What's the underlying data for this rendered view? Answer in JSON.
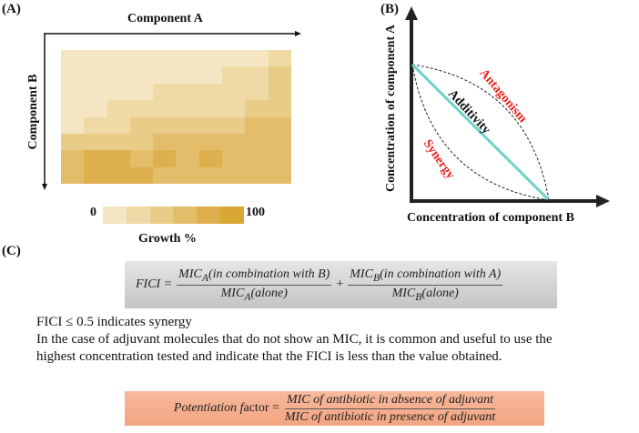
{
  "panel_a": {
    "label": "(A)",
    "x_axis_label": "Component A",
    "y_axis_label": "Component B",
    "colorbar_min": "0",
    "colorbar_max": "100",
    "colorbar_title": "Growth %",
    "colorbar_colors": [
      "#f4e6c2",
      "#efdaa5",
      "#e9cc88",
      "#e3bd69",
      "#ddb04d",
      "#d9a733"
    ],
    "heatmap_levels": [
      [
        0,
        0,
        0,
        0,
        0,
        0,
        0,
        0,
        0,
        1
      ],
      [
        0,
        0,
        0,
        0,
        0,
        0,
        0,
        1,
        1,
        2
      ],
      [
        0,
        0,
        0,
        0,
        1,
        1,
        1,
        1,
        1,
        2
      ],
      [
        0,
        0,
        1,
        1,
        1,
        1,
        1,
        1,
        2,
        2
      ],
      [
        0,
        1,
        1,
        2,
        2,
        2,
        2,
        2,
        3,
        3
      ],
      [
        2,
        2,
        2,
        2,
        3,
        3,
        3,
        3,
        3,
        3
      ],
      [
        3,
        4,
        4,
        3,
        4,
        3,
        4,
        3,
        3,
        3
      ],
      [
        3,
        4,
        4,
        4,
        3,
        3,
        3,
        3,
        3,
        3
      ]
    ]
  },
  "panel_b": {
    "label": "(B)",
    "y_axis_label": "Concentration of component A",
    "x_axis_label": "Concentration of component B",
    "antagonism": "Antagonism",
    "additivity": "Additivity",
    "synergy": "Synergy",
    "region_color": "#e8221d",
    "additivity_line_color": "#6fd3c9"
  },
  "panel_c": {
    "label": "(C)",
    "fici_lhs": "FICI =",
    "term1_num": "MIC",
    "term1_num_sub": "A",
    "term1_num_rest": "(in combination with B)",
    "term1_den": "MIC",
    "term1_den_sub": "A",
    "term1_den_rest": "(alone)",
    "plus": "+",
    "term2_num": "MIC",
    "term2_num_sub": "B",
    "term2_num_rest": "(in combination with A)",
    "term2_den": "MIC",
    "term2_den_sub": "B",
    "term2_den_rest": "(alone)",
    "line1": "FICI ≤ 0.5 indicates synergy",
    "line2": "In the case of adjuvant molecules that do not show an MIC, it is common and useful to use the",
    "line3": "highest concentration tested and indicate that the FICI is less than the value obtained.",
    "pf_lhs_italic": "Potentiation f",
    "pf_lhs_rest": "actor =",
    "pf_num": "MIC of antibiotic in absence of adjuvant",
    "pf_den": "MIC of antibiotic in presence of adjuvant"
  }
}
